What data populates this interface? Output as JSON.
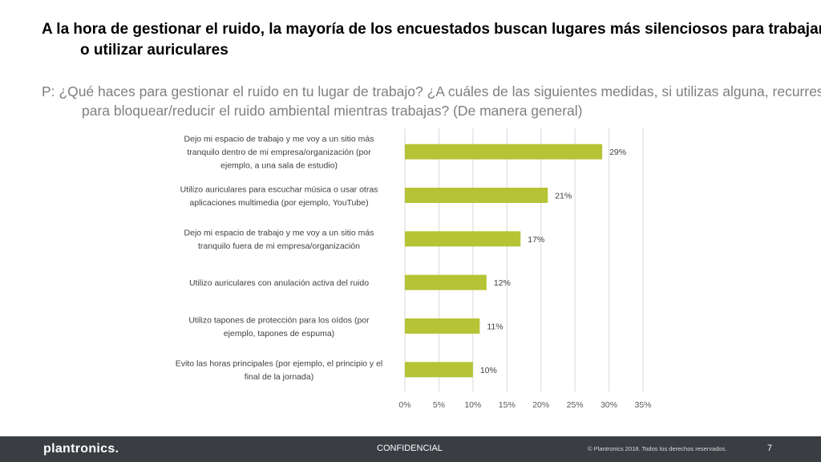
{
  "slide": {
    "title": "A la hora de gestionar el ruido, la mayoría de los encuestados buscan lugares más silenciosos para trabajar o utilizar auriculares",
    "question": "P: ¿Qué haces para gestionar el ruido en tu lugar de trabajo? ¿A cuáles de las siguientes medidas, si utilizas alguna, recurres para bloquear/reducir el ruido ambiental mientras trabajas? (De manera general)"
  },
  "chart_data": {
    "type": "bar",
    "orientation": "horizontal",
    "categories": [
      [
        "Dejo mi espacio de trabajo y me voy a un sitio más",
        "tranquilo dentro de mi empresa/organización (por",
        "ejemplo, a una sala de estudio)"
      ],
      [
        "Utilizo auriculares para escuchar música o usar otras",
        "aplicaciones multimedia (por ejemplo, YouTube)"
      ],
      [
        "Dejo mi espacio de trabajo y me voy a un sitio más",
        "tranquilo fuera de mi empresa/organización"
      ],
      [
        "Utilizo auriculares con anulación activa del ruido"
      ],
      [
        "Utilizo tapones de protección para los oídos (por",
        "ejemplo, tapones de espuma)"
      ],
      [
        "Evito las horas principales (por ejemplo, el principio y el",
        "final de la jornada)"
      ]
    ],
    "values": [
      29,
      21,
      17,
      12,
      11,
      10
    ],
    "data_labels": [
      "29%",
      "21%",
      "17%",
      "12%",
      "11%",
      "10%"
    ],
    "xlim": [
      0,
      35
    ],
    "xticks": [
      "0%",
      "5%",
      "10%",
      "15%",
      "20%",
      "25%",
      "30%",
      "35%"
    ],
    "grid": true,
    "bar_color": "#b5c335",
    "grid_color": "#d9d9d9"
  },
  "footer": {
    "logo": "plantronics.",
    "confidential": "CONFIDENCIAL",
    "copyright": "© Plantronics 2018. Todos los derechos reservados.",
    "page_number": "7",
    "background": "#3a3e43"
  }
}
